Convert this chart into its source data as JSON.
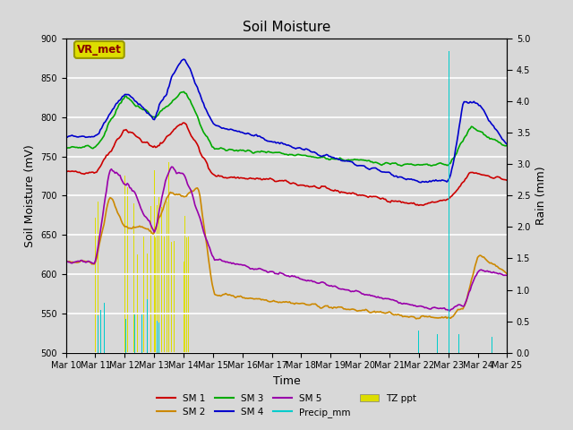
{
  "title": "Soil Moisture",
  "xlabel": "Time",
  "ylabel_left": "Soil Moisture (mV)",
  "ylabel_right": "Rain (mm)",
  "ylim_left": [
    500,
    900
  ],
  "ylim_right": [
    0.0,
    5.0
  ],
  "yticks_left": [
    500,
    550,
    600,
    650,
    700,
    750,
    800,
    850,
    900
  ],
  "yticks_right": [
    0.0,
    0.5,
    1.0,
    1.5,
    2.0,
    2.5,
    3.0,
    3.5,
    4.0,
    4.5,
    5.0
  ],
  "background_color": "#d8d8d8",
  "plot_bg_color": "#d8d8d8",
  "grid_color": "white",
  "sm1_color": "#cc0000",
  "sm2_color": "#cc8800",
  "sm3_color": "#00aa00",
  "sm4_color": "#0000cc",
  "sm5_color": "#9900aa",
  "precip_color": "#00cccc",
  "tz_color": "#dddd00",
  "label_box_facecolor": "#dddd00",
  "label_box_edgecolor": "#999900",
  "label_text_color": "#880000",
  "days": [
    "Mar 10",
    "Mar 11",
    "Mar 12",
    "Mar 13",
    "Mar 14",
    "Mar 15",
    "Mar 16",
    "Mar 17",
    "Mar 18",
    "Mar 19",
    "Mar 20",
    "Mar 21",
    "Mar 22",
    "Mar 23",
    "Mar 24",
    "Mar 25"
  ]
}
